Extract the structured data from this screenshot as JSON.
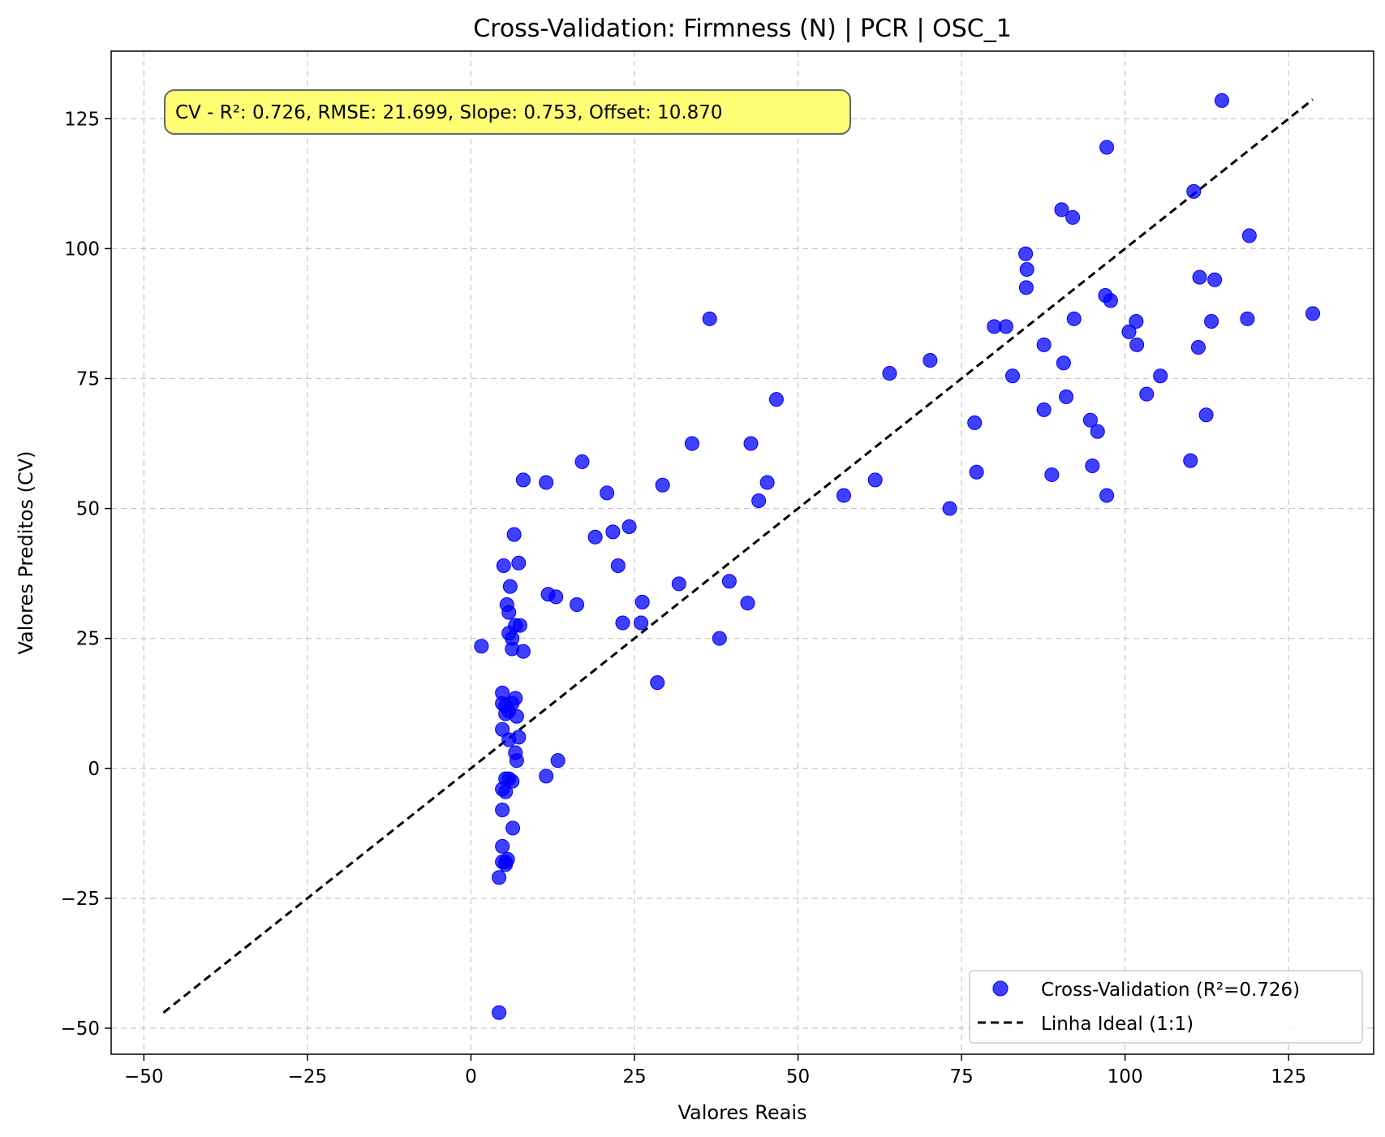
{
  "chart_data": {
    "type": "scatter",
    "title": "Cross-Validation: Firmness (N) | PCR | OSC_1",
    "xlabel": "Valores Reais",
    "ylabel": "Valores Preditos (CV)",
    "xlim": [
      -55,
      138
    ],
    "ylim": [
      -55,
      138
    ],
    "xticks": [
      -50,
      -25,
      0,
      25,
      50,
      75,
      100,
      125
    ],
    "yticks": [
      -50,
      -25,
      0,
      25,
      50,
      75,
      100,
      125
    ],
    "xtick_labels": [
      "−50",
      "−25",
      "0",
      "25",
      "50",
      "75",
      "100",
      "125"
    ],
    "ytick_labels": [
      "−50",
      "−25",
      "0",
      "25",
      "50",
      "75",
      "100",
      "125"
    ],
    "grid": true,
    "legend_position": "lower-right",
    "annotation": "CV - R²: 0.726, RMSE: 21.699, Slope: 0.753, Offset: 10.870",
    "colors": {
      "points": "#0000ff",
      "ideal_line": "#000000",
      "annotation_bg": "#ffff66"
    },
    "series": [
      {
        "name": "Cross-Validation (R²=0.726)",
        "marker": "circle",
        "points": [
          [
            4.3,
            -47
          ],
          [
            4.3,
            -21
          ],
          [
            4.8,
            -15
          ],
          [
            4.8,
            -18
          ],
          [
            5.3,
            -18
          ],
          [
            5.6,
            -17.5
          ],
          [
            5.3,
            -18.5
          ],
          [
            4.8,
            -8
          ],
          [
            4.8,
            -4
          ],
          [
            5.3,
            -4.5
          ],
          [
            5.3,
            -2
          ],
          [
            5.8,
            -2
          ],
          [
            6.3,
            -2.5
          ],
          [
            6.4,
            -11.5
          ],
          [
            7.0,
            1.5
          ],
          [
            6.8,
            3.0
          ],
          [
            5.8,
            5.5
          ],
          [
            7.3,
            6.0
          ],
          [
            4.8,
            7.5
          ],
          [
            7.0,
            10.0
          ],
          [
            4.8,
            12.5
          ],
          [
            5.3,
            12.0
          ],
          [
            5.8,
            11.0
          ],
          [
            5.3,
            10.5
          ],
          [
            6.3,
            12.5
          ],
          [
            6.8,
            13.5
          ],
          [
            4.8,
            14.5
          ],
          [
            1.6,
            23.5
          ],
          [
            6.3,
            23.0
          ],
          [
            8.0,
            22.5
          ],
          [
            6.3,
            25.0
          ],
          [
            5.8,
            26.0
          ],
          [
            6.8,
            27.5
          ],
          [
            7.5,
            27.5
          ],
          [
            5.8,
            30.0
          ],
          [
            5.5,
            31.5
          ],
          [
            6.0,
            35.0
          ],
          [
            5.0,
            39.0
          ],
          [
            7.3,
            39.5
          ],
          [
            6.6,
            45.0
          ],
          [
            8.0,
            55.5
          ],
          [
            11.5,
            -1.5
          ],
          [
            13.3,
            1.5
          ],
          [
            11.5,
            55.0
          ],
          [
            11.8,
            33.5
          ],
          [
            13.0,
            33.0
          ],
          [
            16.2,
            31.5
          ],
          [
            17.0,
            59.0
          ],
          [
            19.0,
            44.5
          ],
          [
            20.8,
            53.0
          ],
          [
            21.7,
            45.5
          ],
          [
            22.5,
            39.0
          ],
          [
            23.2,
            28.0
          ],
          [
            24.2,
            46.5
          ],
          [
            26.0,
            28.0
          ],
          [
            26.2,
            32.0
          ],
          [
            28.5,
            16.5
          ],
          [
            29.3,
            54.5
          ],
          [
            31.8,
            35.5
          ],
          [
            33.8,
            62.5
          ],
          [
            36.5,
            86.5
          ],
          [
            38.0,
            25.0
          ],
          [
            39.5,
            36.0
          ],
          [
            42.3,
            31.8
          ],
          [
            42.8,
            62.5
          ],
          [
            44.0,
            51.5
          ],
          [
            45.3,
            55.0
          ],
          [
            46.7,
            71.0
          ],
          [
            57.0,
            52.5
          ],
          [
            61.8,
            55.5
          ],
          [
            64.0,
            76.0
          ],
          [
            70.2,
            78.5
          ],
          [
            73.2,
            50.0
          ],
          [
            77.0,
            66.5
          ],
          [
            77.3,
            57.0
          ],
          [
            80.0,
            85.0
          ],
          [
            81.8,
            85.0
          ],
          [
            82.8,
            75.5
          ],
          [
            84.8,
            99.0
          ],
          [
            85.0,
            96.0
          ],
          [
            84.9,
            92.5
          ],
          [
            87.6,
            81.5
          ],
          [
            87.6,
            69.0
          ],
          [
            88.8,
            56.5
          ],
          [
            90.3,
            107.5
          ],
          [
            90.6,
            78.0
          ],
          [
            91.0,
            71.5
          ],
          [
            92.0,
            106.0
          ],
          [
            92.2,
            86.5
          ],
          [
            94.7,
            67.0
          ],
          [
            95.0,
            58.2
          ],
          [
            95.8,
            64.8
          ],
          [
            97.0,
            91.0
          ],
          [
            97.2,
            119.5
          ],
          [
            97.2,
            52.5
          ],
          [
            97.8,
            90.0
          ],
          [
            100.6,
            84.0
          ],
          [
            101.7,
            86.0
          ],
          [
            101.8,
            81.5
          ],
          [
            103.3,
            72.0
          ],
          [
            105.4,
            75.5
          ],
          [
            110.0,
            59.2
          ],
          [
            110.5,
            111.0
          ],
          [
            111.2,
            81.0
          ],
          [
            111.4,
            94.5
          ],
          [
            112.4,
            68.0
          ],
          [
            113.2,
            86.0
          ],
          [
            113.7,
            94.0
          ],
          [
            114.8,
            128.5
          ],
          [
            118.7,
            86.5
          ],
          [
            119.0,
            102.5
          ],
          [
            128.7,
            87.5
          ]
        ]
      },
      {
        "name": "Linha Ideal (1:1)",
        "line_style": "dashed",
        "x": [
          -47,
          128.7
        ],
        "y": [
          -47,
          128.7
        ]
      }
    ]
  }
}
